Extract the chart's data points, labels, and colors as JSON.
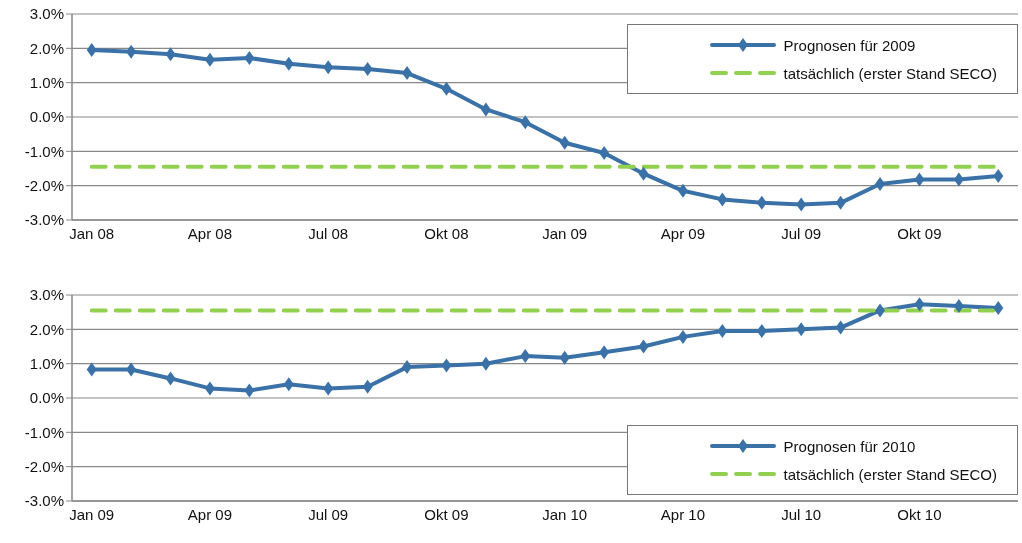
{
  "chart_data": [
    {
      "type": "line",
      "categories": [
        "Jan 08",
        null,
        null,
        "Apr 08",
        null,
        null,
        "Jul 08",
        null,
        null,
        "Okt 08",
        null,
        null,
        "Jan 09",
        null,
        null,
        "Apr 09",
        null,
        null,
        "Jul 09",
        null,
        null,
        "Okt 09",
        null,
        null
      ],
      "series": [
        {
          "name": "Prognosen für 2009",
          "color": "#3a72a8",
          "marker": "diamond",
          "line_style": "solid",
          "values": [
            1.95,
            1.9,
            1.83,
            1.67,
            1.72,
            1.55,
            1.45,
            1.4,
            1.28,
            0.82,
            0.22,
            -0.15,
            -0.75,
            -1.05,
            -1.65,
            -2.15,
            -2.4,
            -2.5,
            -2.55,
            -2.5,
            -1.95,
            -1.82,
            -1.82,
            -1.72
          ]
        },
        {
          "name": "tatsächlich (erster Stand SECO)",
          "color": "#92d050",
          "marker": "none",
          "line_style": "dashed",
          "values": [
            -1.45,
            -1.45,
            -1.45,
            -1.45,
            -1.45,
            -1.45,
            -1.45,
            -1.45,
            -1.45,
            -1.45,
            -1.45,
            -1.45,
            -1.45,
            -1.45,
            -1.45,
            -1.45,
            -1.45,
            -1.45,
            -1.45,
            -1.45,
            -1.45,
            -1.45,
            -1.45,
            -1.45
          ]
        }
      ],
      "ylim": [
        -3,
        3
      ],
      "yticks": [
        {
          "value": -3,
          "label": "-3.0%"
        },
        {
          "value": -2,
          "label": "-2.0%"
        },
        {
          "value": -1,
          "label": "-1.0%"
        },
        {
          "value": 0,
          "label": "0.0%"
        },
        {
          "value": 1,
          "label": "1.0%"
        },
        {
          "value": 2,
          "label": "2.0%"
        },
        {
          "value": 3,
          "label": "3.0%"
        }
      ],
      "grid": "y",
      "legend": "top right"
    },
    {
      "type": "line",
      "categories": [
        "Jan 09",
        null,
        null,
        "Apr 09",
        null,
        null,
        "Jul 09",
        null,
        null,
        "Okt 09",
        null,
        null,
        "Jan 10",
        null,
        null,
        "Apr 10",
        null,
        null,
        "Jul 10",
        null,
        null,
        "Okt 10",
        null,
        null
      ],
      "series": [
        {
          "name": "Prognosen für 2010",
          "color": "#3a72a8",
          "marker": "diamond",
          "line_style": "solid",
          "values": [
            0.83,
            0.83,
            0.57,
            0.28,
            0.22,
            0.4,
            0.28,
            0.33,
            0.9,
            0.95,
            1.0,
            1.22,
            1.17,
            1.33,
            1.5,
            1.78,
            1.95,
            1.95,
            2.0,
            2.05,
            2.55,
            2.73,
            2.68,
            2.62
          ]
        },
        {
          "name": "tatsächlich (erster Stand SECO)",
          "color": "#92d050",
          "marker": "none",
          "line_style": "dashed",
          "values": [
            2.55,
            2.55,
            2.55,
            2.55,
            2.55,
            2.55,
            2.55,
            2.55,
            2.55,
            2.55,
            2.55,
            2.55,
            2.55,
            2.55,
            2.55,
            2.55,
            2.55,
            2.55,
            2.55,
            2.55,
            2.55,
            2.55,
            2.55,
            2.55
          ]
        }
      ],
      "ylim": [
        -3,
        3
      ],
      "yticks": [
        {
          "value": -3,
          "label": "-3.0%"
        },
        {
          "value": -2,
          "label": "-2.0%"
        },
        {
          "value": -1,
          "label": "-1.0%"
        },
        {
          "value": 0,
          "label": "0.0%"
        },
        {
          "value": 1,
          "label": "1.0%"
        },
        {
          "value": 2,
          "label": "2.0%"
        },
        {
          "value": 3,
          "label": "3.0%"
        }
      ],
      "grid": "y",
      "legend": "bottom right"
    }
  ]
}
